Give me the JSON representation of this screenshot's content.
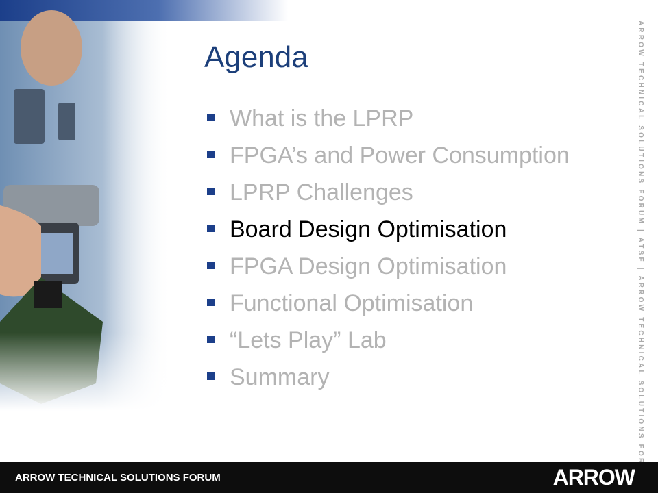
{
  "title": "Agenda",
  "items": [
    "What is the LPRP",
    "FPGA’s and Power Consumption",
    "LPRP Challenges",
    "Board Design Optimisation",
    "FPGA Design Optimisation",
    "Functional Optimisation",
    "“Lets Play” Lab",
    "Summary"
  ],
  "highlight": 3,
  "side_text": "ARROW TECHNICAL SOLUTIONS FORUM | ATSF | ARROW TECHNICAL SOLUTIONS FORUM",
  "footer": {
    "text": "ARROW TECHNICAL SOLUTIONS FORUM",
    "logo": "ARROW"
  }
}
